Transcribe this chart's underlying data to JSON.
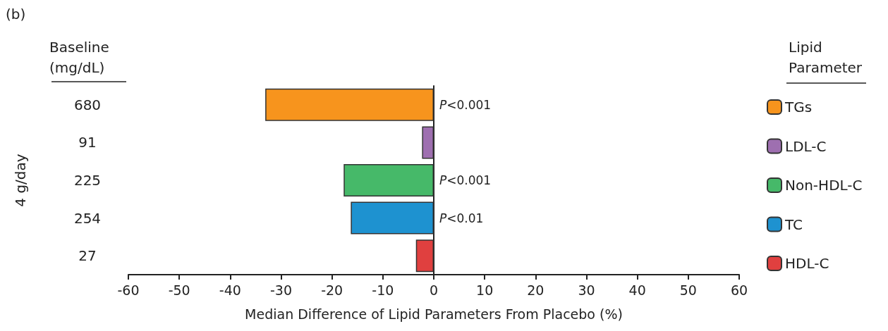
{
  "chart_data": {
    "type": "bar",
    "orientation": "horizontal",
    "title": "(b)",
    "ylabel": "4 g/day",
    "xlabel": "Median Difference of Lipid Parameters From Placebo (%)",
    "legend_title": "Lipid Parameter",
    "legend": "right",
    "categories": [
      "680",
      "91",
      "225",
      "254",
      "27"
    ],
    "series": [
      {
        "name": "TGs",
        "color": "#f7941d",
        "values": [
          -33.1,
          null,
          null,
          null,
          null
        ],
        "value_labels": [
          "P<0.001",
          null,
          null,
          null,
          null
        ]
      },
      {
        "name": "LDL-C",
        "color": "#9e6fb0",
        "values": [
          null,
          -2.3,
          null,
          null,
          null
        ]
      },
      {
        "name": "Non-HDL-C",
        "color": "#46b969",
        "values": [
          null,
          null,
          -17.7,
          null,
          null
        ],
        "value_labels": [
          null,
          null,
          "P<0.001",
          null,
          null
        ]
      },
      {
        "name": "TC",
        "color": "#1e92d0",
        "values": [
          null,
          null,
          null,
          -16.3,
          null
        ],
        "value_labels": [
          null,
          null,
          null,
          "P<0.01",
          null
        ]
      },
      {
        "name": "HDL-C",
        "color": "#e0403f",
        "values": [
          null,
          null,
          null,
          null,
          -3.5
        ]
      }
    ],
    "xlim": [
      -60,
      60
    ],
    "xticks": [
      -60,
      -50,
      -40,
      -30,
      -20,
      -10,
      0,
      10,
      20,
      30,
      40,
      50,
      60
    ],
    "annotations": [
      "Baseline (mg/dL)"
    ]
  }
}
